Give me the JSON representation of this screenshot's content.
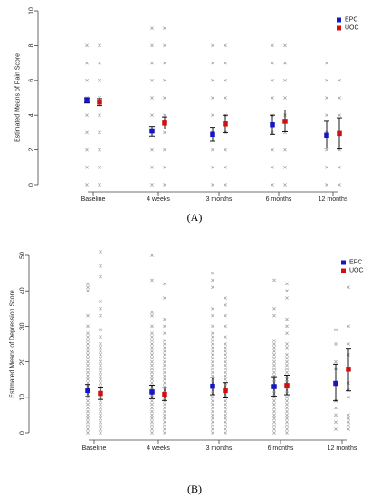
{
  "panels": [
    {
      "label": "(A)",
      "chart_data": {
        "type": "scatter",
        "ylabel": "Estimated Means of Pain Score",
        "xlabel": "",
        "categories": [
          "Baseline",
          "4 weeks",
          "3 months",
          "6 months",
          "12 months"
        ],
        "ylim": [
          0,
          10
        ],
        "yticks": [
          0,
          2,
          4,
          6,
          8,
          10
        ],
        "legend_position": "top-right",
        "series": [
          {
            "name": "EPC",
            "color": "#1515c8",
            "means": [
              4.85,
              3.1,
              2.9,
              3.45,
              2.85
            ],
            "lower": [
              4.7,
              2.8,
              2.5,
              2.9,
              2.1
            ],
            "upper": [
              5.0,
              3.35,
              3.3,
              4.0,
              3.65
            ],
            "raw": [
              [
                0,
                1,
                2,
                3,
                4,
                5,
                6,
                7,
                8
              ],
              [
                0,
                1,
                2,
                3,
                4,
                5,
                6,
                7,
                8,
                9
              ],
              [
                0,
                1,
                2,
                3,
                4,
                5,
                6,
                7,
                8
              ],
              [
                0,
                1,
                2,
                3,
                4,
                5,
                6,
                7,
                8
              ],
              [
                0,
                1,
                2,
                3,
                4,
                5,
                6,
                7
              ]
            ]
          },
          {
            "name": "UOC",
            "color": "#d01010",
            "means": [
              4.75,
              3.55,
              3.5,
              3.65,
              2.95
            ],
            "lower": [
              4.55,
              3.2,
              3.0,
              3.05,
              2.05
            ],
            "upper": [
              4.95,
              3.9,
              4.0,
              4.3,
              3.85
            ],
            "raw": [
              [
                0,
                1,
                2,
                3,
                4,
                5,
                6,
                7,
                8
              ],
              [
                0,
                1,
                2,
                3,
                4,
                5,
                6,
                7,
                8,
                9
              ],
              [
                0,
                1,
                2,
                3,
                4,
                5,
                6,
                7,
                8
              ],
              [
                0,
                1,
                2,
                3,
                4,
                5,
                6,
                7,
                8
              ],
              [
                0,
                1,
                2,
                3,
                4,
                5,
                6
              ]
            ]
          }
        ]
      }
    },
    {
      "label": "(B)",
      "chart_data": {
        "type": "scatter",
        "ylabel": "Estimated Means of Depression Score",
        "xlabel": "",
        "categories": [
          "Baseline",
          "4 weeks",
          "3 months",
          "6 months",
          "12 months"
        ],
        "ylim": [
          0,
          50
        ],
        "yticks": [
          0,
          10,
          20,
          30,
          40,
          50
        ],
        "legend_position": "top-right",
        "series": [
          {
            "name": "EPC",
            "color": "#1515c8",
            "means": [
              11.9,
              11.5,
              13.1,
              13.0,
              13.9
            ],
            "lower": [
              10.2,
              9.6,
              10.7,
              10.3,
              9.0
            ],
            "upper": [
              13.6,
              13.4,
              15.5,
              15.8,
              19.3
            ],
            "raw": [
              [
                0,
                1,
                2,
                3,
                4,
                5,
                6,
                7,
                8,
                9,
                10,
                11,
                12,
                13,
                14,
                15,
                16,
                17,
                18,
                19,
                20,
                21,
                22,
                23,
                24,
                25,
                26,
                27,
                28,
                30,
                33,
                40,
                41,
                42
              ],
              [
                0,
                1,
                2,
                3,
                4,
                5,
                6,
                7,
                8,
                9,
                10,
                11,
                12,
                13,
                14,
                15,
                16,
                17,
                18,
                19,
                20,
                21,
                22,
                23,
                24,
                25,
                26,
                27,
                28,
                30,
                33,
                34,
                43,
                50
              ],
              [
                0,
                1,
                2,
                3,
                4,
                5,
                6,
                7,
                8,
                9,
                10,
                11,
                12,
                13,
                14,
                15,
                16,
                17,
                18,
                19,
                20,
                21,
                22,
                23,
                24,
                25,
                26,
                27,
                28,
                30,
                33,
                35,
                41,
                43,
                45
              ],
              [
                0,
                1,
                2,
                3,
                4,
                5,
                6,
                7,
                8,
                9,
                10,
                11,
                12,
                13,
                14,
                15,
                16,
                17,
                18,
                19,
                20,
                21,
                22,
                23,
                24,
                25,
                26,
                33,
                35,
                43
              ],
              [
                1,
                3,
                5,
                7,
                9,
                14,
                18,
                20,
                25,
                29
              ]
            ]
          },
          {
            "name": "UOC",
            "color": "#d01010",
            "means": [
              11.1,
              10.8,
              11.9,
              13.3,
              17.9
            ],
            "lower": [
              9.4,
              9.1,
              9.8,
              10.7,
              11.8
            ],
            "upper": [
              12.9,
              12.7,
              14.1,
              16.2,
              23.8
            ],
            "raw": [
              [
                0,
                1,
                2,
                3,
                4,
                5,
                6,
                7,
                8,
                9,
                10,
                11,
                12,
                13,
                14,
                15,
                16,
                17,
                18,
                19,
                20,
                21,
                22,
                23,
                24,
                25,
                27,
                29,
                33,
                35,
                37,
                44,
                47,
                51
              ],
              [
                0,
                1,
                2,
                3,
                4,
                5,
                6,
                7,
                8,
                9,
                10,
                11,
                12,
                13,
                14,
                15,
                16,
                17,
                18,
                19,
                20,
                21,
                22,
                23,
                24,
                25,
                26,
                28,
                30,
                32,
                38,
                42
              ],
              [
                0,
                1,
                2,
                3,
                4,
                5,
                6,
                7,
                8,
                9,
                10,
                11,
                12,
                13,
                14,
                15,
                16,
                17,
                18,
                19,
                20,
                21,
                22,
                23,
                24,
                25,
                27,
                30,
                33,
                36,
                38
              ],
              [
                0,
                1,
                2,
                3,
                4,
                5,
                6,
                7,
                8,
                9,
                10,
                11,
                12,
                13,
                14,
                15,
                16,
                17,
                18,
                19,
                20,
                21,
                22,
                24,
                25,
                28,
                30,
                32,
                38,
                40,
                42
              ],
              [
                1,
                2,
                3,
                4,
                5,
                10,
                12,
                14,
                18,
                22,
                25,
                30,
                41
              ]
            ]
          }
        ]
      }
    }
  ]
}
